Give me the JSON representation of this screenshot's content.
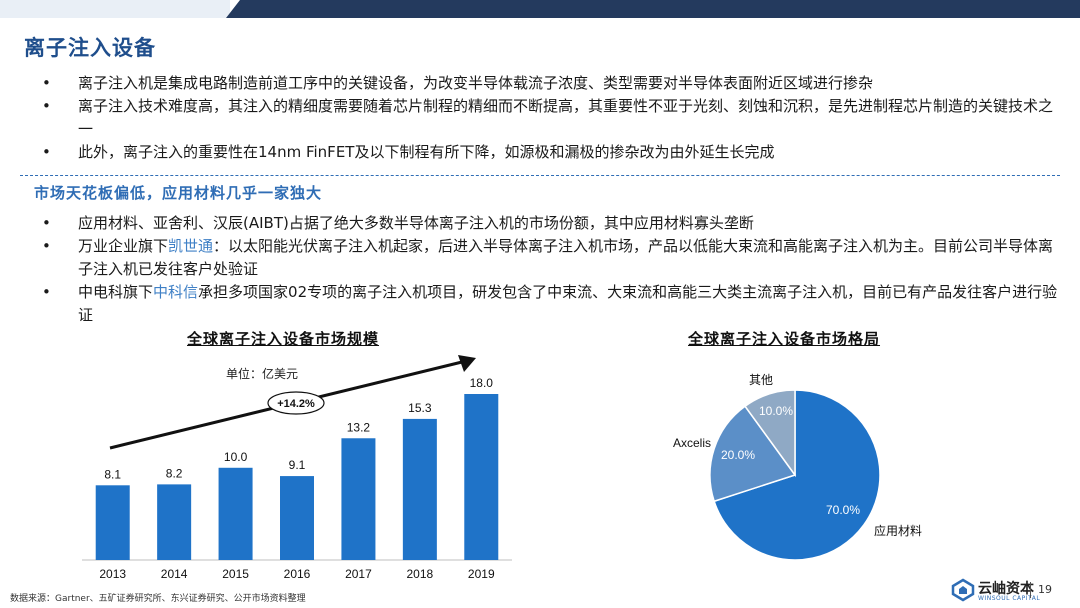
{
  "page": {
    "title": "离子注入设备",
    "bullets_top": [
      "离子注入机是集成电路制造前道工序中的关键设备，为改变半导体载流子浓度、类型需要对半导体表面附近区域进行掺杂",
      "离子注入技术难度高，其注入的精细度需要随着芯片制程的精细而不断提高，其重要性不亚于光刻、刻蚀和沉积，是先进制程芯片制造的关键技术之一",
      "此外，离子注入的重要性在14nm FinFET及以下制程有所下降，如源极和漏极的掺杂改为由外延生长完成"
    ],
    "subheading": "市场天花板偏低，应用材料几乎一家独大",
    "bullets_bottom": [
      {
        "pre": "应用材料、亚舍利、汉辰(AIBT)占据了绝大多数半导体离子注入机的市场份额，其中应用材料寡头垄断",
        "hl": "",
        "post": ""
      },
      {
        "pre": "万业企业旗下",
        "hl": "凯世通",
        "post": "：以太阳能光伏离子注入机起家，后进入半导体离子注入机市场，产品以低能大束流和高能离子注入机为主。目前公司半导体离子注入机已发往客户处验证"
      },
      {
        "pre": "中电科旗下",
        "hl": "中科信",
        "post": "承担多项国家02专项的离子注入机项目，研发包含了中束流、大束流和高能三大类主流离子注入机，目前已有产品发往客户进行验证"
      }
    ],
    "footnote": "数据来源：Gartner、五矿证券研究所、东兴证券研究、公开市场资料整理",
    "logo_name": "云岫资本",
    "logo_sub": "WINSOUL CAPITAL",
    "page_number": "19",
    "colors": {
      "bar": "#1f73c8",
      "pie_main": "#1f73c8",
      "pie_mid": "#5b8fc8",
      "pie_light": "#8fa9c5",
      "title": "#1f4e8c"
    }
  },
  "chart_data": [
    {
      "type": "bar",
      "title": "全球离子注入设备市场规模",
      "unit_label": "单位：亿美元",
      "categories": [
        "2013",
        "2014",
        "2015",
        "2016",
        "2017",
        "2018",
        "2019"
      ],
      "values": [
        8.1,
        8.2,
        10.0,
        9.1,
        13.2,
        15.3,
        18.0
      ],
      "value_labels": [
        "8.1",
        "8.2",
        "10.0",
        "9.1",
        "13.2",
        "15.3",
        "18.0"
      ],
      "growth_annotation": "+14.2%",
      "ylim": [
        0,
        18
      ],
      "grid": false,
      "legend": "none"
    },
    {
      "type": "pie",
      "title": "全球离子注入设备市场格局",
      "slices": [
        {
          "label": "应用材料",
          "value": 70.0,
          "pct_label": "70.0%"
        },
        {
          "label": "Axcelis",
          "value": 20.0,
          "pct_label": "20.0%"
        },
        {
          "label": "其他",
          "value": 10.0,
          "pct_label": "10.0%"
        }
      ],
      "legend": "none"
    }
  ]
}
